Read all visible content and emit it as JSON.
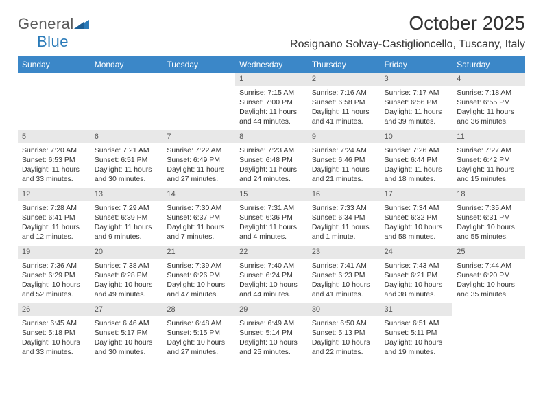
{
  "logo": {
    "word1": "General",
    "word2": "Blue"
  },
  "header": {
    "title": "October 2025",
    "location": "Rosignano Solvay-Castiglioncello, Tuscany, Italy"
  },
  "colors": {
    "header_bg": "#3b87c8",
    "header_text": "#ffffff",
    "daynum_bg": "#e8e8e8",
    "text": "#333333",
    "logo_gray": "#5a5a5a",
    "logo_blue": "#2a7ab8"
  },
  "weekdays": [
    "Sunday",
    "Monday",
    "Tuesday",
    "Wednesday",
    "Thursday",
    "Friday",
    "Saturday"
  ],
  "weeks": [
    [
      {
        "empty": true
      },
      {
        "empty": true
      },
      {
        "empty": true
      },
      {
        "num": "1",
        "sunrise": "Sunrise: 7:15 AM",
        "sunset": "Sunset: 7:00 PM",
        "day1": "Daylight: 11 hours",
        "day2": "and 44 minutes."
      },
      {
        "num": "2",
        "sunrise": "Sunrise: 7:16 AM",
        "sunset": "Sunset: 6:58 PM",
        "day1": "Daylight: 11 hours",
        "day2": "and 41 minutes."
      },
      {
        "num": "3",
        "sunrise": "Sunrise: 7:17 AM",
        "sunset": "Sunset: 6:56 PM",
        "day1": "Daylight: 11 hours",
        "day2": "and 39 minutes."
      },
      {
        "num": "4",
        "sunrise": "Sunrise: 7:18 AM",
        "sunset": "Sunset: 6:55 PM",
        "day1": "Daylight: 11 hours",
        "day2": "and 36 minutes."
      }
    ],
    [
      {
        "num": "5",
        "sunrise": "Sunrise: 7:20 AM",
        "sunset": "Sunset: 6:53 PM",
        "day1": "Daylight: 11 hours",
        "day2": "and 33 minutes."
      },
      {
        "num": "6",
        "sunrise": "Sunrise: 7:21 AM",
        "sunset": "Sunset: 6:51 PM",
        "day1": "Daylight: 11 hours",
        "day2": "and 30 minutes."
      },
      {
        "num": "7",
        "sunrise": "Sunrise: 7:22 AM",
        "sunset": "Sunset: 6:49 PM",
        "day1": "Daylight: 11 hours",
        "day2": "and 27 minutes."
      },
      {
        "num": "8",
        "sunrise": "Sunrise: 7:23 AM",
        "sunset": "Sunset: 6:48 PM",
        "day1": "Daylight: 11 hours",
        "day2": "and 24 minutes."
      },
      {
        "num": "9",
        "sunrise": "Sunrise: 7:24 AM",
        "sunset": "Sunset: 6:46 PM",
        "day1": "Daylight: 11 hours",
        "day2": "and 21 minutes."
      },
      {
        "num": "10",
        "sunrise": "Sunrise: 7:26 AM",
        "sunset": "Sunset: 6:44 PM",
        "day1": "Daylight: 11 hours",
        "day2": "and 18 minutes."
      },
      {
        "num": "11",
        "sunrise": "Sunrise: 7:27 AM",
        "sunset": "Sunset: 6:42 PM",
        "day1": "Daylight: 11 hours",
        "day2": "and 15 minutes."
      }
    ],
    [
      {
        "num": "12",
        "sunrise": "Sunrise: 7:28 AM",
        "sunset": "Sunset: 6:41 PM",
        "day1": "Daylight: 11 hours",
        "day2": "and 12 minutes."
      },
      {
        "num": "13",
        "sunrise": "Sunrise: 7:29 AM",
        "sunset": "Sunset: 6:39 PM",
        "day1": "Daylight: 11 hours",
        "day2": "and 9 minutes."
      },
      {
        "num": "14",
        "sunrise": "Sunrise: 7:30 AM",
        "sunset": "Sunset: 6:37 PM",
        "day1": "Daylight: 11 hours",
        "day2": "and 7 minutes."
      },
      {
        "num": "15",
        "sunrise": "Sunrise: 7:31 AM",
        "sunset": "Sunset: 6:36 PM",
        "day1": "Daylight: 11 hours",
        "day2": "and 4 minutes."
      },
      {
        "num": "16",
        "sunrise": "Sunrise: 7:33 AM",
        "sunset": "Sunset: 6:34 PM",
        "day1": "Daylight: 11 hours",
        "day2": "and 1 minute."
      },
      {
        "num": "17",
        "sunrise": "Sunrise: 7:34 AM",
        "sunset": "Sunset: 6:32 PM",
        "day1": "Daylight: 10 hours",
        "day2": "and 58 minutes."
      },
      {
        "num": "18",
        "sunrise": "Sunrise: 7:35 AM",
        "sunset": "Sunset: 6:31 PM",
        "day1": "Daylight: 10 hours",
        "day2": "and 55 minutes."
      }
    ],
    [
      {
        "num": "19",
        "sunrise": "Sunrise: 7:36 AM",
        "sunset": "Sunset: 6:29 PM",
        "day1": "Daylight: 10 hours",
        "day2": "and 52 minutes."
      },
      {
        "num": "20",
        "sunrise": "Sunrise: 7:38 AM",
        "sunset": "Sunset: 6:28 PM",
        "day1": "Daylight: 10 hours",
        "day2": "and 49 minutes."
      },
      {
        "num": "21",
        "sunrise": "Sunrise: 7:39 AM",
        "sunset": "Sunset: 6:26 PM",
        "day1": "Daylight: 10 hours",
        "day2": "and 47 minutes."
      },
      {
        "num": "22",
        "sunrise": "Sunrise: 7:40 AM",
        "sunset": "Sunset: 6:24 PM",
        "day1": "Daylight: 10 hours",
        "day2": "and 44 minutes."
      },
      {
        "num": "23",
        "sunrise": "Sunrise: 7:41 AM",
        "sunset": "Sunset: 6:23 PM",
        "day1": "Daylight: 10 hours",
        "day2": "and 41 minutes."
      },
      {
        "num": "24",
        "sunrise": "Sunrise: 7:43 AM",
        "sunset": "Sunset: 6:21 PM",
        "day1": "Daylight: 10 hours",
        "day2": "and 38 minutes."
      },
      {
        "num": "25",
        "sunrise": "Sunrise: 7:44 AM",
        "sunset": "Sunset: 6:20 PM",
        "day1": "Daylight: 10 hours",
        "day2": "and 35 minutes."
      }
    ],
    [
      {
        "num": "26",
        "sunrise": "Sunrise: 6:45 AM",
        "sunset": "Sunset: 5:18 PM",
        "day1": "Daylight: 10 hours",
        "day2": "and 33 minutes."
      },
      {
        "num": "27",
        "sunrise": "Sunrise: 6:46 AM",
        "sunset": "Sunset: 5:17 PM",
        "day1": "Daylight: 10 hours",
        "day2": "and 30 minutes."
      },
      {
        "num": "28",
        "sunrise": "Sunrise: 6:48 AM",
        "sunset": "Sunset: 5:15 PM",
        "day1": "Daylight: 10 hours",
        "day2": "and 27 minutes."
      },
      {
        "num": "29",
        "sunrise": "Sunrise: 6:49 AM",
        "sunset": "Sunset: 5:14 PM",
        "day1": "Daylight: 10 hours",
        "day2": "and 25 minutes."
      },
      {
        "num": "30",
        "sunrise": "Sunrise: 6:50 AM",
        "sunset": "Sunset: 5:13 PM",
        "day1": "Daylight: 10 hours",
        "day2": "and 22 minutes."
      },
      {
        "num": "31",
        "sunrise": "Sunrise: 6:51 AM",
        "sunset": "Sunset: 5:11 PM",
        "day1": "Daylight: 10 hours",
        "day2": "and 19 minutes."
      },
      {
        "empty": true
      }
    ]
  ]
}
